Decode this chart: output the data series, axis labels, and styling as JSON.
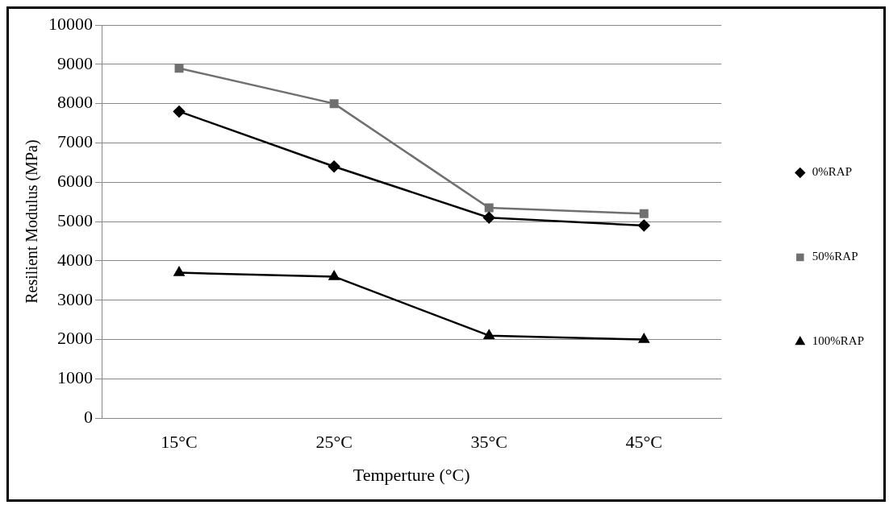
{
  "chart_data": {
    "type": "line",
    "xlabel": "Temperture (°C)",
    "ylabel": "Resilient Modulus (MPa)",
    "categories": [
      "15°C",
      "25°C",
      "35°C",
      "45°C"
    ],
    "series": [
      {
        "name": "0%RAP",
        "color": "#000000",
        "marker": "diamond",
        "values": [
          7800,
          6400,
          5100,
          4900
        ]
      },
      {
        "name": "50%RAP",
        "color": "#707070",
        "marker": "square",
        "values": [
          8900,
          8000,
          5350,
          5200
        ]
      },
      {
        "name": "100%RAP",
        "color": "#000000",
        "marker": "triangle",
        "values": [
          3700,
          3600,
          2100,
          2000
        ]
      }
    ],
    "ylim": [
      0,
      10000
    ],
    "yticks": [
      0,
      1000,
      2000,
      3000,
      4000,
      5000,
      6000,
      7000,
      8000,
      9000,
      10000
    ],
    "grid": "y",
    "legend": "right",
    "line_style": "solid"
  }
}
